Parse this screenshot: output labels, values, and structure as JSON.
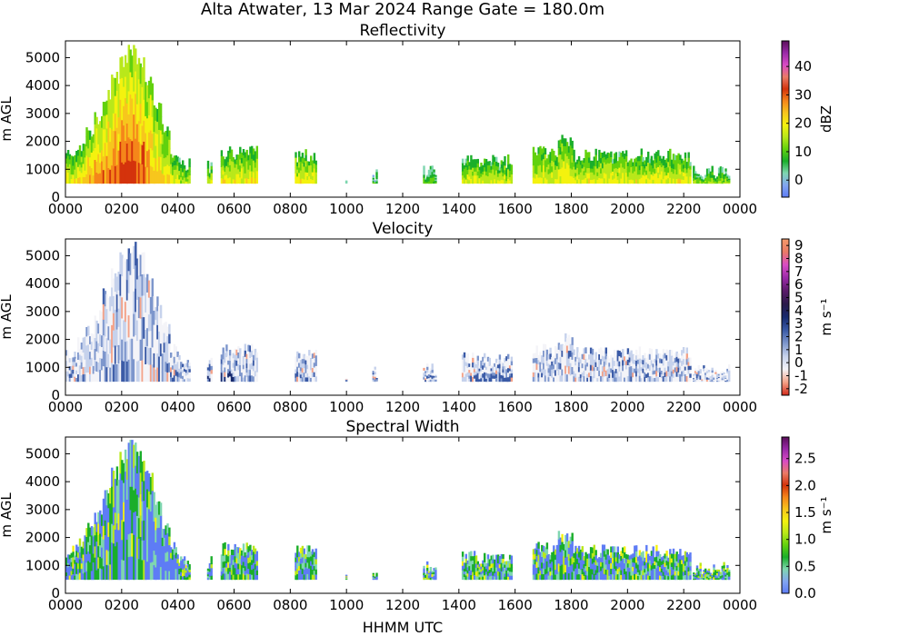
{
  "figure_title": "Alta Atwater, 13 Mar 2024 Range Gate = 180.0m",
  "xlabel": "HHMM UTC",
  "chart_data": [
    {
      "type": "heatmap",
      "title": "Reflectivity",
      "ylabel": "m AGL",
      "colorbar_label": "dBZ",
      "colorbar_ticks": [
        "40",
        "30",
        "20",
        "10",
        "0"
      ],
      "colorbar_range": [
        -6,
        49
      ],
      "ylim": [
        0,
        5600
      ],
      "x_ticks": [
        "0000",
        "0200",
        "0400",
        "0600",
        "0800",
        "1000",
        "1200",
        "1400",
        "1600",
        "1800",
        "2000",
        "2200",
        "0000"
      ],
      "y_ticks": [
        "0",
        "1000",
        "2000",
        "3000",
        "4000",
        "5000"
      ],
      "colormap": [
        "#5e7cf5",
        "#82a6f0",
        "#7fd6b0",
        "#1aae2a",
        "#62d10e",
        "#b9e81a",
        "#f4f20e",
        "#f7c61d",
        "#f5861a",
        "#d4330c",
        "#ea7a66",
        "#d94bc5",
        "#9a2aa8",
        "#5a0f5a"
      ],
      "echo_blocks": [
        {
          "t": [
            0.0,
            0.4
          ],
          "top": 1500,
          "level": 0.45
        },
        {
          "t": [
            0.4,
            0.7
          ],
          "top": 1900,
          "level": 0.5
        },
        {
          "t": [
            0.7,
            1.0
          ],
          "top": 2300,
          "level": 0.55
        },
        {
          "t": [
            1.0,
            1.3
          ],
          "top": 2800,
          "level": 0.6
        },
        {
          "t": [
            1.3,
            1.6
          ],
          "top": 3600,
          "level": 0.62
        },
        {
          "t": [
            1.6,
            1.9
          ],
          "top": 4300,
          "level": 0.66
        },
        {
          "t": [
            1.9,
            2.2
          ],
          "top": 4900,
          "level": 0.7
        },
        {
          "t": [
            2.2,
            2.5
          ],
          "top": 5300,
          "level": 0.7
        },
        {
          "t": [
            2.5,
            2.8
          ],
          "top": 4900,
          "level": 0.66
        },
        {
          "t": [
            2.8,
            3.1
          ],
          "top": 4200,
          "level": 0.6
        },
        {
          "t": [
            3.1,
            3.4
          ],
          "top": 3400,
          "level": 0.55
        },
        {
          "t": [
            3.4,
            3.7
          ],
          "top": 2400,
          "level": 0.5
        },
        {
          "t": [
            3.7,
            4.0
          ],
          "top": 1600,
          "level": 0.45
        },
        {
          "t": [
            4.0,
            4.4
          ],
          "top": 1200,
          "level": 0.4
        },
        {
          "t": [
            5.0,
            5.2
          ],
          "top": 1100,
          "level": 0.42
        },
        {
          "t": [
            5.5,
            6.8
          ],
          "top": 1600,
          "level": 0.46
        },
        {
          "t": [
            8.1,
            8.9
          ],
          "top": 1500,
          "level": 0.48
        },
        {
          "t": [
            9.9,
            10.0
          ],
          "top": 600,
          "level": 0.2
        },
        {
          "t": [
            10.9,
            11.1
          ],
          "top": 800,
          "level": 0.25
        },
        {
          "t": [
            12.7,
            13.2
          ],
          "top": 900,
          "level": 0.3
        },
        {
          "t": [
            14.1,
            15.9
          ],
          "top": 1300,
          "level": 0.42
        },
        {
          "t": [
            16.6,
            17.5
          ],
          "top": 1600,
          "level": 0.46
        },
        {
          "t": [
            17.5,
            18.0
          ],
          "top": 2000,
          "level": 0.48
        },
        {
          "t": [
            18.0,
            22.2
          ],
          "top": 1500,
          "level": 0.45
        },
        {
          "t": [
            22.3,
            23.6
          ],
          "top": 900,
          "level": 0.35
        }
      ],
      "min_height": 500
    },
    {
      "type": "heatmap",
      "title": "Velocity",
      "ylabel": "m s⁻¹",
      "ylabel_left": "m AGL",
      "colorbar_label": "m s⁻¹",
      "colorbar_ticks": [
        "9",
        "8",
        "7",
        "6",
        "5",
        "4",
        "3",
        "2",
        "1",
        "0",
        "-1",
        "-2"
      ],
      "colorbar_range": [
        -2.5,
        9.5
      ],
      "ylim": [
        0,
        5600
      ],
      "x_ticks": [
        "0000",
        "0200",
        "0400",
        "0600",
        "0800",
        "1000",
        "1200",
        "1400",
        "1600",
        "1800",
        "2000",
        "2200",
        "0000"
      ],
      "y_ticks": [
        "0",
        "1000",
        "2000",
        "3000",
        "4000",
        "5000"
      ],
      "colormap": [
        "#d42a1a",
        "#f4a288",
        "#f4f4f8",
        "#c6d2ec",
        "#7d96cc",
        "#3a5aa6",
        "#172a6e",
        "#2a1a4a",
        "#5a1a6a",
        "#9a2aa8",
        "#d94bc5",
        "#ea7a66",
        "#f49a6a"
      ],
      "min_height": 500
    },
    {
      "type": "heatmap",
      "title": "Spectral Width",
      "ylabel_left": "m AGL",
      "colorbar_label": "m s⁻¹",
      "colorbar_ticks": [
        "2.5",
        "2.0",
        "1.5",
        "1.0",
        "0.5",
        "0.0"
      ],
      "colorbar_range": [
        0,
        2.9
      ],
      "ylim": [
        0,
        5600
      ],
      "x_ticks": [
        "0000",
        "0200",
        "0400",
        "0600",
        "0800",
        "1000",
        "1200",
        "1400",
        "1600",
        "1800",
        "2000",
        "2200",
        "0000"
      ],
      "y_ticks": [
        "0",
        "1000",
        "2000",
        "3000",
        "4000",
        "5000"
      ],
      "colormap": [
        "#5e7cf5",
        "#82a6f0",
        "#7fd6b0",
        "#1aae2a",
        "#62d10e",
        "#b9e81a",
        "#f4f20e",
        "#f7c61d",
        "#f5861a",
        "#d4330c",
        "#ea7a66",
        "#d94bc5",
        "#9a2aa8",
        "#5a0f5a"
      ],
      "min_height": 500
    }
  ]
}
